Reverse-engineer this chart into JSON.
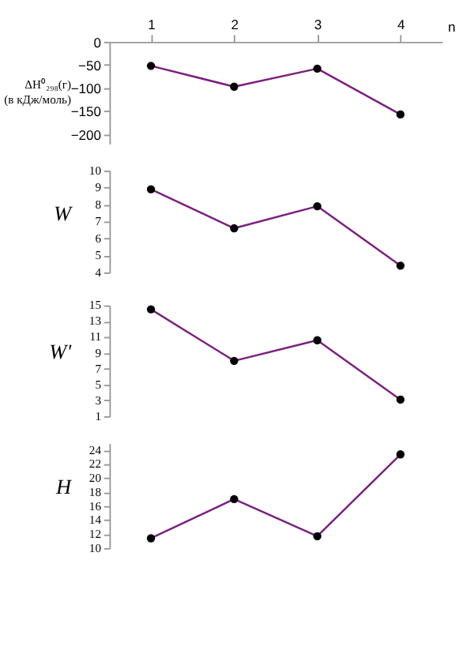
{
  "chart_data": [
    {
      "type": "line",
      "xlabel": "n",
      "ylabel": "ΔH⁰₂₉₈(г)\n(в кДж/моль)",
      "x": [
        1,
        2,
        3,
        4
      ],
      "xlim": [
        0.5,
        4.5
      ],
      "xticks": [
        1,
        2,
        3,
        4
      ],
      "ylim": [
        -220,
        0
      ],
      "yticks": [
        0,
        -50,
        -100,
        -150,
        -200
      ],
      "marker": "circle",
      "grid": false,
      "series": [
        {
          "color": "#7b1f7f",
          "values": [
            -52,
            -97,
            -58,
            -157
          ]
        }
      ]
    },
    {
      "type": "line",
      "ylabel": "W",
      "x": [
        1,
        2,
        3,
        4
      ],
      "ylim": [
        4,
        10
      ],
      "yticks": [
        4,
        5,
        6,
        7,
        8,
        9,
        10
      ],
      "marker": "circle",
      "grid": false,
      "tick_labels": "y",
      "series": [
        {
          "color": "#7b1f7f",
          "values": [
            8.9,
            6.6,
            7.9,
            4.4
          ]
        }
      ]
    },
    {
      "type": "line",
      "ylabel": "W'",
      "x": [
        1,
        2,
        3,
        4
      ],
      "ylim": [
        1,
        15
      ],
      "yticks": [
        1,
        3,
        5,
        7,
        9,
        11,
        13,
        15
      ],
      "marker": "circle",
      "grid": false,
      "tick_labels": "y",
      "series": [
        {
          "color": "#7b1f7f",
          "values": [
            14.5,
            8.0,
            10.6,
            3.1
          ]
        }
      ]
    },
    {
      "type": "line",
      "ylabel": "H",
      "x": [
        1,
        2,
        3,
        4
      ],
      "ylim": [
        10,
        25
      ],
      "yticks": [
        10,
        12,
        14,
        16,
        18,
        20,
        22,
        24
      ],
      "marker": "circle",
      "grid": false,
      "tick_labels": "y",
      "series": [
        {
          "color": "#7b1f7f",
          "values": [
            11.4,
            17.0,
            11.7,
            23.4
          ]
        }
      ]
    }
  ]
}
